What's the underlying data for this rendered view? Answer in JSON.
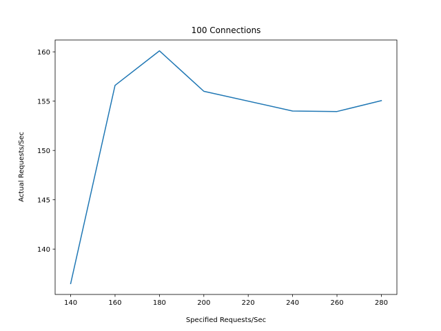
{
  "chart_data": {
    "type": "line",
    "title": "100 Connections",
    "xlabel": "Specified Requests/Sec",
    "ylabel": "Actual Requests/Sec",
    "xlim": [
      133.0,
      287.0
    ],
    "ylim": [
      135.4,
      161.2
    ],
    "xticks": [
      140,
      160,
      180,
      200,
      220,
      240,
      260,
      280
    ],
    "yticks": [
      140,
      145,
      150,
      155,
      160
    ],
    "grid": false,
    "series": [
      {
        "color": "#1f77b4",
        "x": [
          140,
          160,
          180,
          200,
          240,
          260,
          280
        ],
        "y": [
          136.5,
          156.6,
          160.1,
          156.0,
          154.0,
          153.95,
          155.05
        ]
      }
    ]
  }
}
